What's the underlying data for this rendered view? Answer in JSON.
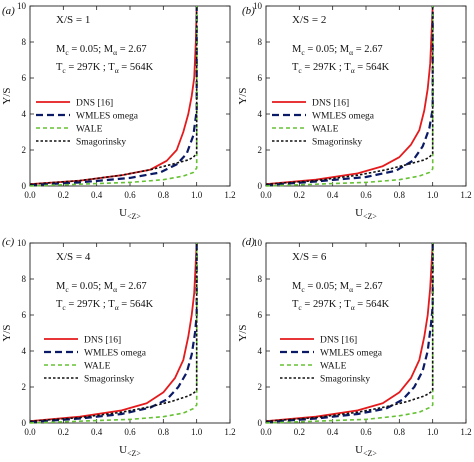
{
  "colors": {
    "dns": "#e41a1c",
    "wmles": "#0b1a66",
    "wale": "#66c234",
    "smag": "#111111"
  },
  "chart_data": [
    {
      "type": "line",
      "panel": "(a)",
      "title": "X/S = 1",
      "annotation": [
        "M_c = 0.05; M_α = 2.67",
        "T_c = 297K ; T_α = 564K"
      ],
      "xlabel": "U_<Z>",
      "ylabel": "Y/S",
      "xlim": [
        0.0,
        1.2
      ],
      "ylim": [
        0,
        10
      ],
      "xticks": [
        "0.0",
        "0.2",
        "0.4",
        "0.6",
        "0.8",
        "1.0",
        "1.2"
      ],
      "yticks": [
        "0",
        "2",
        "4",
        "6",
        "8",
        "10"
      ],
      "legend_position": "center-left",
      "series": [
        {
          "name": "DNS [16]",
          "color": "#e41a1c",
          "dash": "solid",
          "x": [
            0.0,
            0.3,
            0.55,
            0.72,
            0.82,
            0.88,
            0.92,
            0.95,
            0.97,
            0.985,
            0.995,
            1.0
          ],
          "y": [
            0.1,
            0.3,
            0.6,
            0.9,
            1.4,
            2.0,
            3.0,
            4.0,
            5.0,
            6.0,
            8.0,
            10.0
          ]
        },
        {
          "name": "WMLES omega",
          "color": "#0b1a66",
          "dash": "long",
          "x": [
            0.0,
            0.3,
            0.6,
            0.78,
            0.88,
            0.94,
            0.98,
            1.0,
            1.0
          ],
          "y": [
            0.05,
            0.2,
            0.45,
            0.75,
            1.2,
            1.8,
            2.8,
            4.2,
            10.0
          ]
        },
        {
          "name": "WALE",
          "color": "#66c234",
          "dash": "medium",
          "x": [
            0.0,
            0.3,
            0.6,
            0.8,
            0.92,
            0.98,
            1.0,
            1.0
          ],
          "y": [
            0.0,
            0.1,
            0.2,
            0.35,
            0.55,
            0.75,
            1.0,
            10.0
          ]
        },
        {
          "name": "Smagorinsky",
          "color": "#111111",
          "dash": "short",
          "x": [
            0.0,
            0.3,
            0.55,
            0.72,
            0.85,
            0.95,
            0.98,
            1.0,
            1.0
          ],
          "y": [
            0.1,
            0.3,
            0.6,
            0.9,
            1.2,
            1.45,
            1.6,
            1.8,
            10.0
          ]
        }
      ]
    },
    {
      "type": "line",
      "panel": "(b)",
      "title": "X/S = 2",
      "annotation": [
        "M_c = 0.05; M_α = 2.67",
        "T_c = 297K ; T_α = 564K"
      ],
      "xlabel": "U_<Z>",
      "ylabel": "Y/S",
      "xlim": [
        0.0,
        1.2
      ],
      "ylim": [
        0,
        10
      ],
      "xticks": [
        "0.0",
        "0.2",
        "0.4",
        "0.6",
        "0.8",
        "1.0",
        "1.2"
      ],
      "yticks": [
        "0",
        "2",
        "4",
        "6",
        "8",
        "10"
      ],
      "legend_position": "center-left",
      "series": [
        {
          "name": "DNS [16]",
          "color": "#e41a1c",
          "dash": "solid",
          "x": [
            0.0,
            0.3,
            0.55,
            0.7,
            0.8,
            0.87,
            0.92,
            0.95,
            0.97,
            0.985,
            1.0
          ],
          "y": [
            0.1,
            0.35,
            0.7,
            1.1,
            1.6,
            2.3,
            3.1,
            4.2,
            5.4,
            6.8,
            10.0
          ]
        },
        {
          "name": "WMLES omega",
          "color": "#0b1a66",
          "dash": "long",
          "x": [
            0.0,
            0.3,
            0.6,
            0.78,
            0.88,
            0.94,
            0.98,
            1.0,
            1.0
          ],
          "y": [
            0.05,
            0.25,
            0.5,
            0.85,
            1.4,
            2.2,
            3.2,
            4.3,
            10.0
          ]
        },
        {
          "name": "WALE",
          "color": "#66c234",
          "dash": "medium",
          "x": [
            0.0,
            0.3,
            0.6,
            0.8,
            0.92,
            0.98,
            1.0,
            1.0
          ],
          "y": [
            0.0,
            0.1,
            0.2,
            0.35,
            0.55,
            0.75,
            0.95,
            10.0
          ]
        },
        {
          "name": "Smagorinsky",
          "color": "#111111",
          "dash": "short",
          "x": [
            0.0,
            0.3,
            0.55,
            0.72,
            0.85,
            0.95,
            0.98,
            1.0,
            1.0
          ],
          "y": [
            0.1,
            0.3,
            0.6,
            0.9,
            1.2,
            1.45,
            1.6,
            1.8,
            10.0
          ]
        }
      ]
    },
    {
      "type": "line",
      "panel": "(c)",
      "title": "X/S = 4",
      "annotation": [
        "M_c = 0.05; M_α = 2.67",
        "T_c = 297K ; T_α = 564K"
      ],
      "xlabel": "U_<Z>",
      "ylabel": "Y/S",
      "xlim": [
        0.0,
        1.2
      ],
      "ylim": [
        0,
        10
      ],
      "xticks": [
        "0.0",
        "0.2",
        "0.4",
        "0.6",
        "0.8",
        "1.0",
        "1.2"
      ],
      "yticks": [
        "0",
        "2",
        "4",
        "6",
        "8",
        "10"
      ],
      "legend_position": "center-right",
      "series": [
        {
          "name": "DNS [16]",
          "color": "#e41a1c",
          "dash": "solid",
          "x": [
            0.0,
            0.3,
            0.55,
            0.7,
            0.8,
            0.87,
            0.92,
            0.95,
            0.97,
            0.985,
            1.0
          ],
          "y": [
            0.1,
            0.35,
            0.7,
            1.1,
            1.7,
            2.5,
            3.5,
            4.8,
            6.0,
            7.2,
            10.0
          ]
        },
        {
          "name": "WMLES omega",
          "color": "#0b1a66",
          "dash": "long",
          "x": [
            0.0,
            0.3,
            0.55,
            0.72,
            0.82,
            0.89,
            0.94,
            0.97,
            0.99,
            1.0,
            1.0
          ],
          "y": [
            0.05,
            0.25,
            0.5,
            0.85,
            1.3,
            2.0,
            2.8,
            3.8,
            5.0,
            6.0,
            10.0
          ]
        },
        {
          "name": "WALE",
          "color": "#66c234",
          "dash": "medium",
          "x": [
            0.0,
            0.3,
            0.6,
            0.8,
            0.92,
            0.98,
            1.0,
            1.0
          ],
          "y": [
            0.0,
            0.1,
            0.2,
            0.35,
            0.55,
            0.8,
            1.0,
            10.0
          ]
        },
        {
          "name": "Smagorinsky",
          "color": "#111111",
          "dash": "short",
          "x": [
            0.0,
            0.3,
            0.55,
            0.72,
            0.85,
            0.95,
            0.98,
            1.0,
            1.0
          ],
          "y": [
            0.1,
            0.3,
            0.6,
            0.9,
            1.2,
            1.5,
            1.65,
            1.8,
            10.0
          ]
        }
      ]
    },
    {
      "type": "line",
      "panel": "(d)",
      "title": "X/S = 6",
      "annotation": [
        "M_c = 0.05; M_α = 2.67",
        "T_c = 297K ; T_α = 564K"
      ],
      "xlabel": "U_<Z>",
      "ylabel": "Y/S",
      "xlim": [
        0.0,
        1.2
      ],
      "ylim": [
        0,
        10
      ],
      "xticks": [
        "0.0",
        "0.2",
        "0.4",
        "0.6",
        "0.8",
        "1.0",
        "1.2"
      ],
      "yticks": [
        "0",
        "2",
        "4",
        "6",
        "8",
        "10"
      ],
      "legend_position": "center-right",
      "series": [
        {
          "name": "DNS [16]",
          "color": "#e41a1c",
          "dash": "solid",
          "x": [
            0.0,
            0.3,
            0.55,
            0.7,
            0.8,
            0.87,
            0.92,
            0.95,
            0.97,
            0.985,
            1.0
          ],
          "y": [
            0.1,
            0.35,
            0.7,
            1.1,
            1.7,
            2.5,
            3.5,
            4.8,
            6.0,
            7.5,
            10.0
          ]
        },
        {
          "name": "WMLES omega",
          "color": "#0b1a66",
          "dash": "long",
          "x": [
            0.0,
            0.3,
            0.55,
            0.72,
            0.82,
            0.89,
            0.94,
            0.97,
            0.99,
            1.0,
            1.0
          ],
          "y": [
            0.05,
            0.25,
            0.5,
            0.8,
            1.3,
            2.0,
            2.9,
            4.0,
            5.5,
            6.5,
            10.0
          ]
        },
        {
          "name": "WALE",
          "color": "#66c234",
          "dash": "medium",
          "x": [
            0.0,
            0.3,
            0.6,
            0.8,
            0.92,
            0.98,
            1.0,
            1.0
          ],
          "y": [
            0.0,
            0.1,
            0.2,
            0.4,
            0.6,
            0.85,
            1.0,
            10.0
          ]
        },
        {
          "name": "Smagorinsky",
          "color": "#111111",
          "dash": "short",
          "x": [
            0.0,
            0.3,
            0.55,
            0.72,
            0.85,
            0.95,
            0.98,
            1.0,
            1.0
          ],
          "y": [
            0.1,
            0.3,
            0.6,
            0.9,
            1.2,
            1.5,
            1.65,
            1.8,
            10.0
          ]
        }
      ]
    }
  ]
}
